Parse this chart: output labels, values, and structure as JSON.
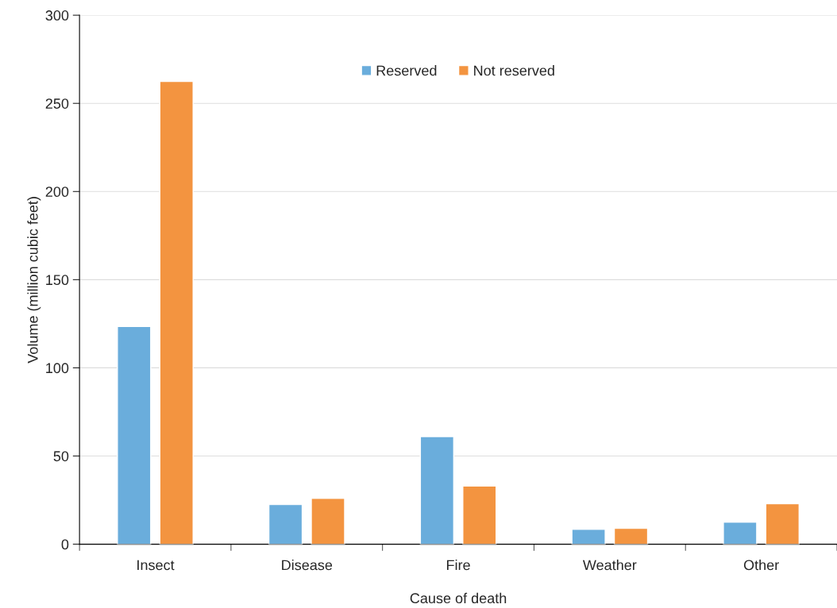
{
  "chart_data": {
    "type": "bar",
    "xlabel": "Cause of death",
    "ylabel": "Volume (million cubic feet)",
    "categories": [
      "Insect",
      "Disease",
      "Fire",
      "Weather",
      "Other"
    ],
    "series": [
      {
        "name": "Reserved",
        "color": "#6aaddc",
        "values": [
          123.5,
          22.5,
          61,
          8.5,
          12.5
        ]
      },
      {
        "name": "Not reserved",
        "color": "#f39440",
        "values": [
          262.5,
          26,
          33,
          9,
          23
        ]
      }
    ],
    "ylim": [
      0,
      300
    ],
    "yticks": [
      0,
      50,
      100,
      150,
      200,
      250,
      300
    ],
    "grid": "y",
    "legend": "top"
  }
}
